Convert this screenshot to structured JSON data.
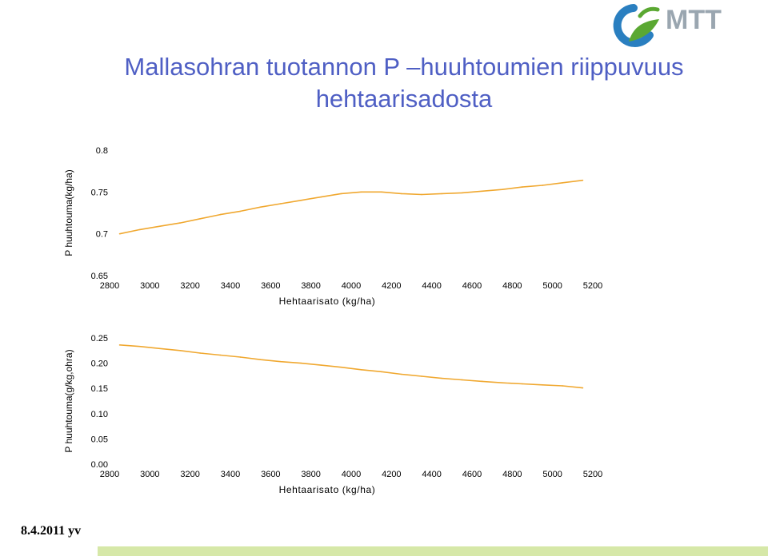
{
  "logo": {
    "text": "MTT",
    "icon": "mtt-swirl-logo"
  },
  "title": {
    "line1": "Mallasohran tuotannon P –huuhtoumien riippuvuus",
    "line2": "hehtaarisadosta"
  },
  "date_label": "8.4.2011 yv",
  "colors": {
    "title": "#4f5fc4",
    "series": "#f0a830",
    "axis": "#000000",
    "logo_text": "#9aa6b0",
    "logo_green": "#5aa832",
    "logo_blue": "#2a7fc0",
    "footer": "#d6e8a8"
  },
  "chart_data": [
    {
      "type": "line",
      "title": "",
      "xlabel": "Hehtaarisato (kg/ha)",
      "ylabel": "P huuhtouma(kg/ha)",
      "xlim": [
        2800,
        5200
      ],
      "ylim": [
        0.65,
        0.8
      ],
      "xticks": [
        "2800",
        "3000",
        "3200",
        "3400",
        "3600",
        "3800",
        "4000",
        "4200",
        "4400",
        "4600",
        "4800",
        "5000",
        "5200"
      ],
      "yticks": [
        "0.65",
        "0.7",
        "0.75",
        "0.8"
      ],
      "grid": false,
      "series": [
        {
          "x": [
            2850,
            2950,
            3050,
            3150,
            3250,
            3350,
            3450,
            3550,
            3650,
            3750,
            3850,
            3950,
            4050,
            4150,
            4250,
            4350,
            4450,
            4550,
            4650,
            4750,
            4850,
            4950,
            5050,
            5150
          ],
          "values": [
            0.7,
            0.705,
            0.709,
            0.713,
            0.718,
            0.723,
            0.727,
            0.732,
            0.736,
            0.74,
            0.744,
            0.748,
            0.75,
            0.75,
            0.748,
            0.747,
            0.748,
            0.749,
            0.751,
            0.753,
            0.756,
            0.758,
            0.761,
            0.764
          ]
        }
      ]
    },
    {
      "type": "line",
      "title": "",
      "xlabel": "Hehtaarisato (kg/ha)",
      "ylabel": "P huuhtouma(g/kg,ohra)",
      "xlim": [
        2800,
        5200
      ],
      "ylim": [
        0.0,
        0.25
      ],
      "xticks": [
        "2800",
        "3000",
        "3200",
        "3400",
        "3600",
        "3800",
        "4000",
        "4200",
        "4400",
        "4600",
        "4800",
        "5000",
        "5200"
      ],
      "yticks": [
        "0.00",
        "0.05",
        "0.10",
        "0.15",
        "0.20",
        "0.25"
      ],
      "grid": false,
      "series": [
        {
          "x": [
            2850,
            2950,
            3050,
            3150,
            3250,
            3350,
            3450,
            3550,
            3650,
            3750,
            3850,
            3950,
            4050,
            4150,
            4250,
            4350,
            4450,
            4550,
            4650,
            4750,
            4850,
            4950,
            5050,
            5150
          ],
          "values": [
            0.236,
            0.233,
            0.229,
            0.225,
            0.22,
            0.216,
            0.212,
            0.207,
            0.203,
            0.2,
            0.196,
            0.192,
            0.187,
            0.183,
            0.178,
            0.174,
            0.17,
            0.167,
            0.164,
            0.161,
            0.159,
            0.157,
            0.155,
            0.151
          ]
        }
      ]
    }
  ]
}
